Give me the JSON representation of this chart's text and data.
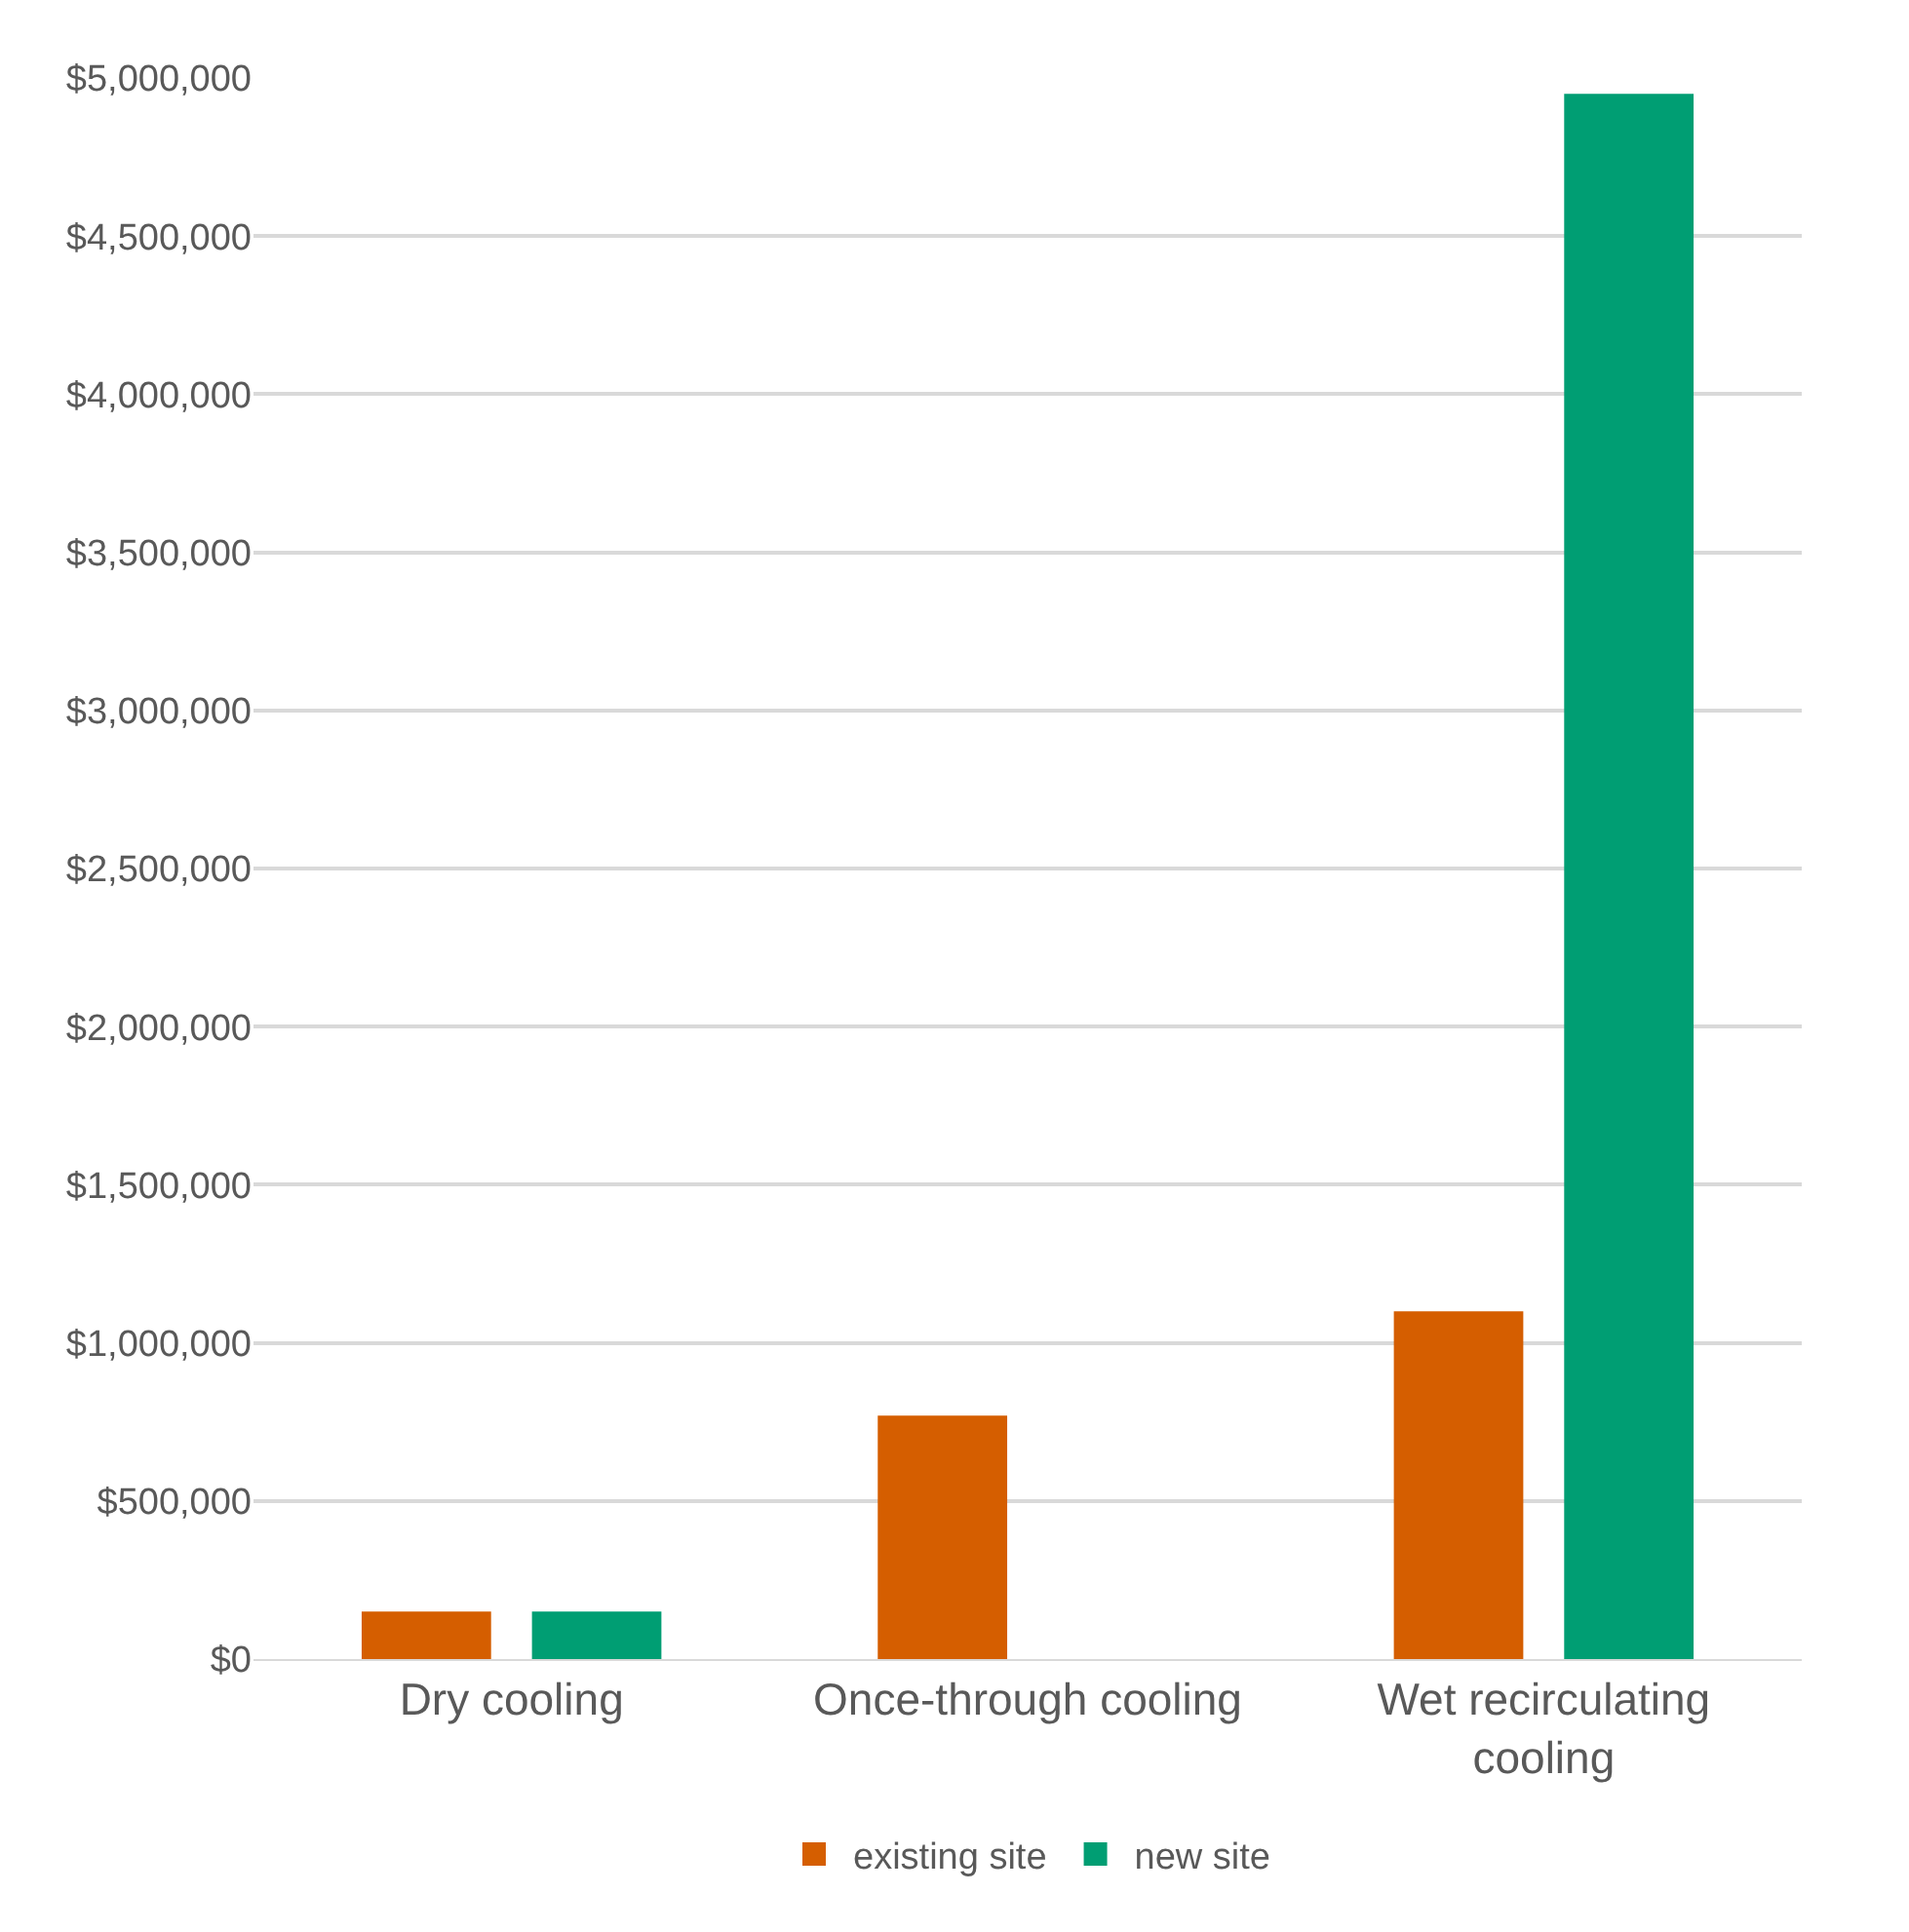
{
  "chart_data": {
    "type": "bar",
    "categories": [
      "Dry cooling",
      "Once-through cooling",
      "Wet recirculating cooling"
    ],
    "series": [
      {
        "name": "existing site",
        "color": "#d55e00",
        "values": [
          150000,
          770000,
          1100000
        ]
      },
      {
        "name": "new site",
        "color": "#009e73",
        "values": [
          150000,
          null,
          4950000
        ]
      }
    ],
    "ylim": [
      0,
      5000000
    ],
    "yticks": [
      {
        "value": 0,
        "label": "$0"
      },
      {
        "value": 500000,
        "label": "$500,000"
      },
      {
        "value": 1000000,
        "label": "$1,000,000"
      },
      {
        "value": 1500000,
        "label": "$1,500,000"
      },
      {
        "value": 2000000,
        "label": "$2,000,000"
      },
      {
        "value": 2500000,
        "label": "$2,500,000"
      },
      {
        "value": 3000000,
        "label": "$3,000,000"
      },
      {
        "value": 3500000,
        "label": "$3,500,000"
      },
      {
        "value": 4000000,
        "label": "$4,000,000"
      },
      {
        "value": 4500000,
        "label": "$4,500,000"
      },
      {
        "value": 5000000,
        "label": "$5,000,000"
      }
    ],
    "grid": "y",
    "legend": "bottom"
  }
}
